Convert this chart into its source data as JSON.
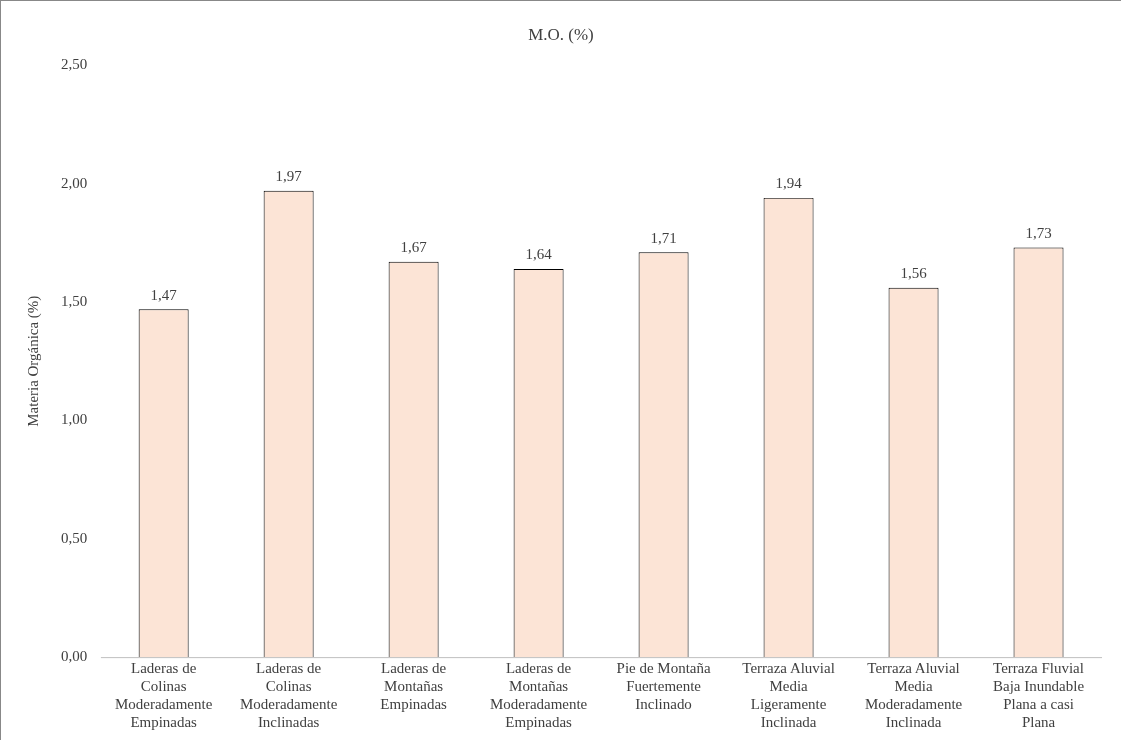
{
  "chart_data": {
    "type": "bar",
    "title": "M.O. (%)",
    "ylabel": "Materia Orgánica (%)",
    "categories": [
      "Laderas de\nColinas\nModeradamente\nEmpinadas",
      "Laderas de\nColinas\nModeradamente\nInclinadas",
      "Laderas de\nMontañas\nEmpinadas",
      "Laderas de\nMontañas\nModeradamente\nEmpinadas",
      "Pie de Montaña\nFuertemente\nInclinado",
      "Terraza Aluvial\nMedia\nLigeramente\nInclinada",
      "Terraza Aluvial\nMedia\nModeradamente\nInclinada",
      "Terraza Fluvial\nBaja Inundable\nPlana a casi\nPlana"
    ],
    "values": [
      1.47,
      1.97,
      1.67,
      1.64,
      1.71,
      1.94,
      1.56,
      1.73
    ],
    "value_labels": [
      "1,47",
      "1,97",
      "1,67",
      "1,64",
      "1,71",
      "1,94",
      "1,56",
      "1,73"
    ],
    "color": "#fce4d6",
    "ylim": [
      0,
      2.5
    ],
    "yticks": [
      {
        "value": 0,
        "label": "0,00"
      },
      {
        "value": 0.5,
        "label": "0,50"
      },
      {
        "value": 1,
        "label": "1,00"
      },
      {
        "value": 1.5,
        "label": "1,50"
      },
      {
        "value": 2,
        "label": "2,00"
      },
      {
        "value": 2.5,
        "label": "2,50"
      }
    ],
    "grid": false,
    "legend": false
  }
}
